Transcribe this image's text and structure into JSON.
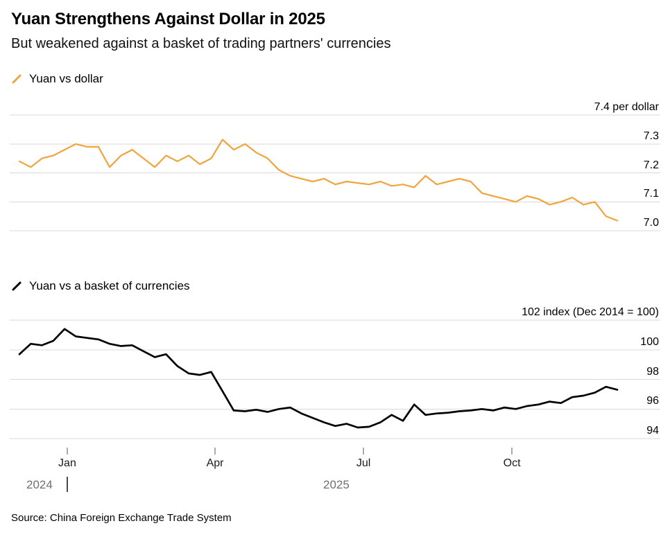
{
  "header": {
    "title": "Yuan Strengthens Against Dollar in 2025",
    "subtitle": "But weakened against a basket of trading partners' currencies"
  },
  "source": "Source: China Foreign Exchange Trade System",
  "x_axis": {
    "tick_labels": [
      "Jan",
      "Apr",
      "Jul",
      "Oct"
    ],
    "tick_indices": [
      4.24,
      17.34,
      30.5,
      43.66
    ],
    "year_start_label": "2024",
    "year_mid_label": "2025"
  },
  "chart_data": [
    {
      "type": "line",
      "legend": "Yuan vs dollar",
      "color": "#F1A33C",
      "ylabel": "per dollar",
      "ylim": [
        6.975,
        7.425
      ],
      "grid": true,
      "legend_position": "top-left",
      "y_ticks": [
        {
          "value": 7.4,
          "label": "7.4 per dollar"
        },
        {
          "value": 7.3,
          "label": "7.3"
        },
        {
          "value": 7.2,
          "label": "7.2"
        },
        {
          "value": 7.1,
          "label": "7.1"
        },
        {
          "value": 7.0,
          "label": "7.0"
        }
      ],
      "values": [
        7.24,
        7.22,
        7.25,
        7.26,
        7.28,
        7.3,
        7.29,
        7.29,
        7.22,
        7.26,
        7.28,
        7.25,
        7.22,
        7.26,
        7.24,
        7.26,
        7.23,
        7.25,
        7.315,
        7.28,
        7.3,
        7.27,
        7.25,
        7.21,
        7.19,
        7.18,
        7.17,
        7.18,
        7.16,
        7.17,
        7.165,
        7.16,
        7.17,
        7.155,
        7.16,
        7.15,
        7.19,
        7.16,
        7.17,
        7.18,
        7.17,
        7.13,
        7.12,
        7.11,
        7.1,
        7.12,
        7.11,
        7.09,
        7.1,
        7.115,
        7.09,
        7.1,
        7.05,
        7.035
      ]
    },
    {
      "type": "line",
      "legend": "Yuan vs a basket of currencies",
      "color": "#000000",
      "ylabel": "index (Dec 2014 = 100)",
      "ylim": [
        93.9,
        102.1
      ],
      "grid": true,
      "legend_position": "top-left",
      "y_ticks": [
        {
          "value": 102,
          "label": "102 index (Dec 2014 = 100)"
        },
        {
          "value": 100,
          "label": "100"
        },
        {
          "value": 98,
          "label": "98"
        },
        {
          "value": 96,
          "label": "96"
        },
        {
          "value": 94,
          "label": "94"
        }
      ],
      "values": [
        99.7,
        100.4,
        100.3,
        100.6,
        101.4,
        100.9,
        100.8,
        100.7,
        100.4,
        100.25,
        100.3,
        99.9,
        99.5,
        99.7,
        98.9,
        98.4,
        98.3,
        98.5,
        97.2,
        95.9,
        95.85,
        95.95,
        95.8,
        96.0,
        96.1,
        95.7,
        95.4,
        95.1,
        94.85,
        95.0,
        94.75,
        94.8,
        95.1,
        95.6,
        95.2,
        96.3,
        95.6,
        95.7,
        95.75,
        95.85,
        95.9,
        96.0,
        95.9,
        96.1,
        96.0,
        96.2,
        96.3,
        96.5,
        96.4,
        96.8,
        96.9,
        97.1,
        97.5,
        97.3
      ]
    }
  ]
}
